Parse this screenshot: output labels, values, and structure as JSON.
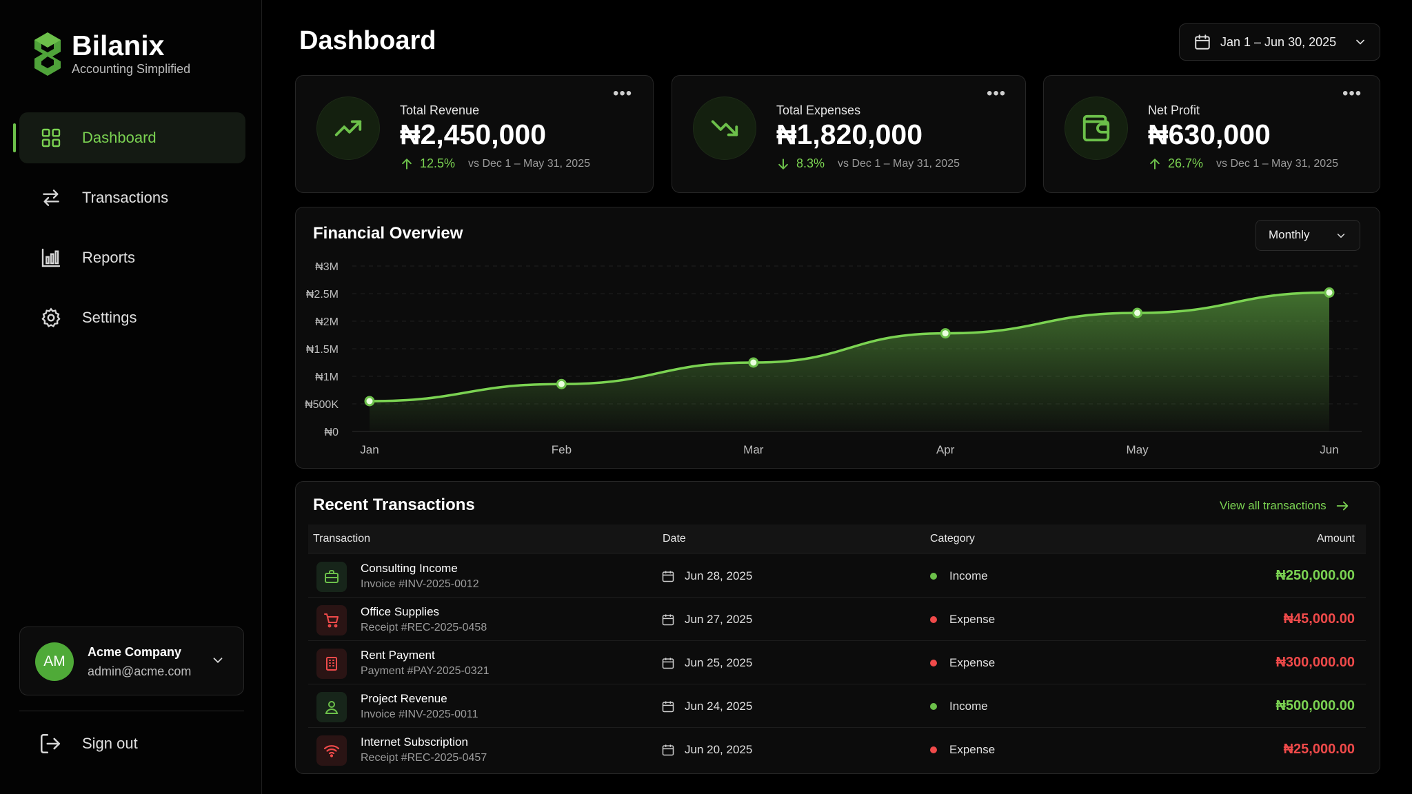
{
  "brand": {
    "name": "Bilanix",
    "tagline": "Accounting Simplified"
  },
  "nav": [
    {
      "label": "Dashboard",
      "icon": "grid-icon",
      "active": true
    },
    {
      "label": "Transactions",
      "icon": "arrows-swap-icon"
    },
    {
      "label": "Reports",
      "icon": "bar-chart-icon"
    },
    {
      "label": "Settings",
      "icon": "gear-icon"
    }
  ],
  "account": {
    "initials": "AM",
    "name": "Acme Company",
    "email": "admin@acme.com"
  },
  "signout": {
    "label": "Sign out"
  },
  "header": {
    "title": "Dashboard",
    "date_range": "Jan 1 – Jun 30, 2025"
  },
  "kpis": [
    {
      "label": "Total Revenue",
      "value": "₦2,450,000",
      "change": "12.5%",
      "direction": "up",
      "compare": "vs Dec 1 – May 31, 2025",
      "icon": "trending-up-icon"
    },
    {
      "label": "Total Expenses",
      "value": "₦1,820,000",
      "change": "8.3%",
      "direction": "down",
      "compare": "vs Dec 1 – May 31, 2025",
      "icon": "trending-down-icon"
    },
    {
      "label": "Net Profit",
      "value": "₦630,000",
      "change": "26.7%",
      "direction": "up",
      "compare": "vs Dec 1 – May 31, 2025",
      "icon": "wallet-icon"
    }
  ],
  "overview": {
    "title": "Financial Overview",
    "period": "Monthly"
  },
  "chart_data": {
    "type": "area",
    "categories": [
      "Jan",
      "Feb",
      "Mar",
      "Apr",
      "May",
      "Jun"
    ],
    "values": [
      550000,
      860000,
      1250000,
      1780000,
      2150000,
      2520000
    ],
    "y_ticks": [
      "₦0",
      "₦500K",
      "₦1M",
      "₦1.5M",
      "₦2M",
      "₦2.5M",
      "₦3M"
    ],
    "ylim": [
      0,
      3000000
    ],
    "grid": true,
    "color": "#6cc04a"
  },
  "transactions": {
    "title": "Recent Transactions",
    "view_all": "View all transactions",
    "columns": [
      "Transaction",
      "Date",
      "Category",
      "Amount"
    ],
    "rows": [
      {
        "name": "Consulting Income",
        "ref": "Invoice #INV-2025-0012",
        "date": "Jun 28, 2025",
        "category": "Income",
        "amount": "₦250,000.00",
        "icon": "briefcase-icon",
        "tone": "green"
      },
      {
        "name": "Office Supplies",
        "ref": "Receipt #REC-2025-0458",
        "date": "Jun 27, 2025",
        "category": "Expense",
        "amount": "₦45,000.00",
        "icon": "cart-icon",
        "tone": "red"
      },
      {
        "name": "Rent Payment",
        "ref": "Payment #PAY-2025-0321",
        "date": "Jun 25, 2025",
        "category": "Expense",
        "amount": "₦300,000.00",
        "icon": "building-icon",
        "tone": "red"
      },
      {
        "name": "Project Revenue",
        "ref": "Invoice #INV-2025-0011",
        "date": "Jun 24, 2025",
        "category": "Income",
        "amount": "₦500,000.00",
        "icon": "user-icon",
        "tone": "green"
      },
      {
        "name": "Internet Subscription",
        "ref": "Receipt #REC-2025-0457",
        "date": "Jun 20, 2025",
        "category": "Expense",
        "amount": "₦25,000.00",
        "icon": "wifi-icon",
        "tone": "red"
      }
    ]
  },
  "colors": {
    "accent": "#6cc04a",
    "income": "#7bd352",
    "expense": "#f04a4a",
    "background": "#000000",
    "card": "#0c0c0c"
  }
}
